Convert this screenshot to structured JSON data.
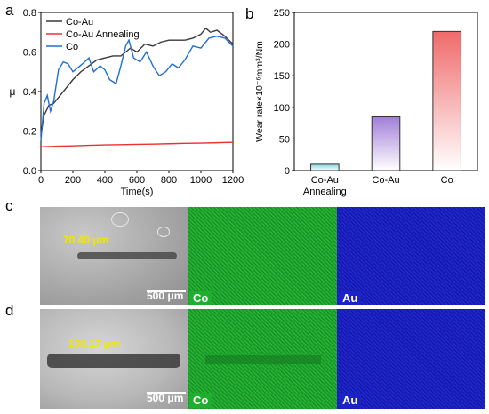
{
  "panels": {
    "a": "a",
    "b": "b",
    "c": "c",
    "d": "d"
  },
  "colors": {
    "co_au": "#3a3a3a",
    "co_au_annealing": "#e8332e",
    "co": "#1f6fd6",
    "co_map": "#1fae2e",
    "au_map": "#1a22c8",
    "measure_text": "#f2e600"
  },
  "chart_data": [
    {
      "type": "line",
      "panel": "a",
      "xlabel": "Time(s)",
      "ylabel": "μ",
      "xlim": [
        0,
        1200
      ],
      "ylim": [
        0,
        0.8
      ],
      "xticks": [
        "0",
        "200",
        "400",
        "600",
        "800",
        "1000",
        "1200"
      ],
      "yticks": [
        "0.0",
        "0.2",
        "0.4",
        "0.6",
        "0.8"
      ],
      "legend_position": "top-left",
      "series": [
        {
          "name": "Co-Au",
          "color": "#3a3a3a",
          "x": [
            0,
            20,
            50,
            80,
            110,
            150,
            200,
            250,
            300,
            350,
            400,
            450,
            500,
            530,
            560,
            600,
            650,
            700,
            750,
            800,
            850,
            900,
            950,
            1000,
            1030,
            1060,
            1100,
            1150,
            1200
          ],
          "y": [
            0.18,
            0.28,
            0.33,
            0.34,
            0.37,
            0.41,
            0.46,
            0.5,
            0.53,
            0.56,
            0.57,
            0.58,
            0.58,
            0.6,
            0.62,
            0.6,
            0.64,
            0.63,
            0.65,
            0.66,
            0.66,
            0.66,
            0.67,
            0.69,
            0.72,
            0.7,
            0.71,
            0.68,
            0.64
          ]
        },
        {
          "name": "Co-Au Annealing",
          "color": "#e8332e",
          "x": [
            0,
            100,
            200,
            300,
            400,
            500,
            600,
            700,
            800,
            900,
            1000,
            1100,
            1200
          ],
          "y": [
            0.12,
            0.123,
            0.125,
            0.128,
            0.13,
            0.131,
            0.133,
            0.134,
            0.136,
            0.138,
            0.139,
            0.141,
            0.143
          ]
        },
        {
          "name": "Co",
          "color": "#1f6fd6",
          "x": [
            0,
            20,
            40,
            60,
            80,
            110,
            140,
            170,
            200,
            230,
            260,
            300,
            330,
            370,
            400,
            430,
            470,
            500,
            530,
            550,
            580,
            620,
            660,
            700,
            740,
            780,
            820,
            860,
            900,
            950,
            1000,
            1050,
            1100,
            1150,
            1200
          ],
          "y": [
            0.15,
            0.34,
            0.38,
            0.3,
            0.35,
            0.51,
            0.55,
            0.54,
            0.5,
            0.52,
            0.54,
            0.57,
            0.5,
            0.53,
            0.51,
            0.46,
            0.44,
            0.53,
            0.63,
            0.66,
            0.57,
            0.55,
            0.6,
            0.53,
            0.48,
            0.5,
            0.54,
            0.52,
            0.56,
            0.63,
            0.62,
            0.67,
            0.68,
            0.67,
            0.63
          ]
        }
      ]
    },
    {
      "type": "bar",
      "panel": "b",
      "ylabel": "Wear rate×10⁻⁶mm³/Nm",
      "ylim": [
        0,
        250
      ],
      "yticks": [
        "0",
        "50",
        "100",
        "150",
        "200",
        "250"
      ],
      "categories": [
        "Co-Au Annealing",
        "Co-Au",
        "Co"
      ],
      "category_labels": [
        [
          "Co-Au",
          "Annealing"
        ],
        [
          "Co-Au"
        ],
        [
          "Co"
        ]
      ],
      "values": [
        10,
        85,
        220
      ],
      "bar_colors": [
        "#7fd6dc",
        "#a27ed8",
        "#f06a6a"
      ]
    }
  ],
  "sem": {
    "c": {
      "measurement": "70.40 μm",
      "scalebar": "500 μm",
      "co_label": "Co",
      "au_label": "Au"
    },
    "d": {
      "measurement": "138.17 μm",
      "scalebar": "500 μm",
      "co_label": "Co",
      "au_label": "Au"
    }
  }
}
